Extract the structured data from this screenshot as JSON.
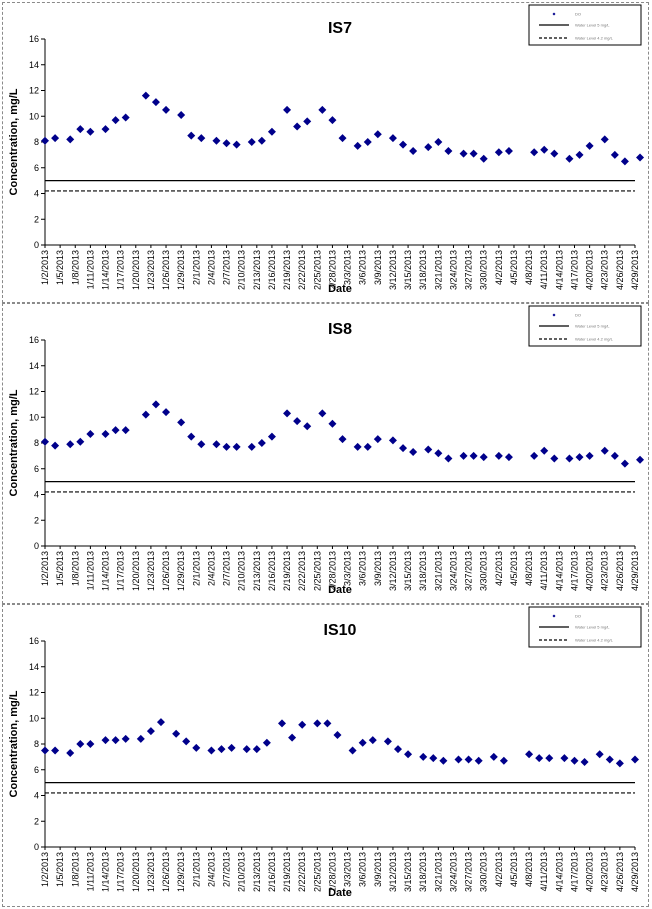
{
  "chart_data": [
    {
      "type": "scatter",
      "title": "IS7",
      "xlabel": "Date",
      "ylabel": "Concentration, mg/L",
      "ylim": [
        0,
        16
      ],
      "yticks": [
        0,
        2,
        4,
        6,
        8,
        10,
        12,
        14,
        16
      ],
      "x_tick_labels": [
        "1/2/2013",
        "1/5/2013",
        "1/8/2013",
        "1/11/2013",
        "1/14/2013",
        "1/17/2013",
        "1/20/2013",
        "1/23/2013",
        "1/26/2013",
        "1/29/2013",
        "2/1/2013",
        "2/4/2013",
        "2/7/2013",
        "2/10/2013",
        "2/13/2013",
        "2/16/2013",
        "2/19/2013",
        "2/22/2013",
        "2/25/2013",
        "2/28/2013",
        "3/3/2013",
        "3/6/2013",
        "3/9/2013",
        "3/12/2013",
        "3/15/2013",
        "3/18/2013",
        "3/21/2013",
        "3/24/2013",
        "3/27/2013",
        "3/30/2013",
        "4/2/2013",
        "4/5/2013",
        "4/8/2013",
        "4/11/2013",
        "4/14/2013",
        "4/17/2013",
        "4/20/2013",
        "4/23/2013",
        "4/26/2013",
        "4/29/2013"
      ],
      "x_range": [
        "2013-01-02",
        "2013-04-29"
      ],
      "grid": false,
      "legend": {
        "position": "top-right",
        "entries": [
          "DO",
          "Water Level 5 mg/L",
          "Water Level 4.2 mg/L"
        ]
      },
      "lines": [
        {
          "y": 5,
          "style": "solid"
        },
        {
          "y": 4.2,
          "style": "dashed"
        }
      ],
      "series": [
        {
          "marker": "diamond",
          "color": "#00008B",
          "x": [
            "2013-01-02",
            "2013-01-04",
            "2013-01-07",
            "2013-01-09",
            "2013-01-11",
            "2013-01-14",
            "2013-01-16",
            "2013-01-18",
            "2013-01-22",
            "2013-01-24",
            "2013-01-26",
            "2013-01-29",
            "2013-01-31",
            "2013-02-02",
            "2013-02-05",
            "2013-02-07",
            "2013-02-09",
            "2013-02-12",
            "2013-02-14",
            "2013-02-16",
            "2013-02-19",
            "2013-02-21",
            "2013-02-23",
            "2013-02-26",
            "2013-02-28",
            "2013-03-02",
            "2013-03-05",
            "2013-03-07",
            "2013-03-09",
            "2013-03-12",
            "2013-03-14",
            "2013-03-16",
            "2013-03-19",
            "2013-03-21",
            "2013-03-23",
            "2013-03-26",
            "2013-03-28",
            "2013-03-30",
            "2013-04-02",
            "2013-04-04",
            "2013-04-09",
            "2013-04-11",
            "2013-04-13",
            "2013-04-16",
            "2013-04-18",
            "2013-04-20",
            "2013-04-23",
            "2013-04-25",
            "2013-04-27",
            "2013-04-30"
          ],
          "y": [
            8.1,
            8.3,
            8.2,
            9.0,
            8.8,
            9.0,
            9.7,
            9.9,
            11.6,
            11.1,
            10.5,
            10.1,
            8.5,
            8.3,
            8.1,
            7.9,
            7.8,
            8.0,
            8.1,
            8.8,
            10.5,
            9.2,
            9.6,
            10.5,
            9.7,
            8.3,
            7.7,
            8.0,
            8.6,
            8.3,
            7.8,
            7.3,
            7.6,
            8.0,
            7.3,
            7.1,
            7.1,
            6.7,
            7.2,
            7.3,
            7.2,
            7.4,
            7.1,
            6.7,
            7.0,
            7.7,
            8.2,
            7.0,
            6.5,
            6.8
          ]
        }
      ]
    },
    {
      "type": "scatter",
      "title": "IS8",
      "xlabel": "Date",
      "ylabel": "Concentration, mg/L",
      "ylim": [
        0,
        16
      ],
      "yticks": [
        0,
        2,
        4,
        6,
        8,
        10,
        12,
        14,
        16
      ],
      "x_tick_labels": [
        "1/2/2013",
        "1/5/2013",
        "1/8/2013",
        "1/11/2013",
        "1/14/2013",
        "1/17/2013",
        "1/20/2013",
        "1/23/2013",
        "1/26/2013",
        "1/29/2013",
        "2/1/2013",
        "2/4/2013",
        "2/7/2013",
        "2/10/2013",
        "2/13/2013",
        "2/16/2013",
        "2/19/2013",
        "2/22/2013",
        "2/25/2013",
        "2/28/2013",
        "3/3/2013",
        "3/6/2013",
        "3/9/2013",
        "3/12/2013",
        "3/15/2013",
        "3/18/2013",
        "3/21/2013",
        "3/24/2013",
        "3/27/2013",
        "3/30/2013",
        "4/2/2013",
        "4/5/2013",
        "4/8/2013",
        "4/11/2013",
        "4/14/2013",
        "4/17/2013",
        "4/20/2013",
        "4/23/2013",
        "4/26/2013",
        "4/29/2013"
      ],
      "x_range": [
        "2013-01-02",
        "2013-04-29"
      ],
      "grid": false,
      "legend": {
        "position": "top-right",
        "entries": [
          "DO",
          "Water Level 5 mg/L",
          "Water Level 4.2 mg/L"
        ]
      },
      "lines": [
        {
          "y": 5,
          "style": "solid"
        },
        {
          "y": 4.2,
          "style": "dashed"
        }
      ],
      "series": [
        {
          "marker": "diamond",
          "color": "#00008B",
          "x": [
            "2013-01-02",
            "2013-01-04",
            "2013-01-07",
            "2013-01-09",
            "2013-01-11",
            "2013-01-14",
            "2013-01-16",
            "2013-01-18",
            "2013-01-22",
            "2013-01-24",
            "2013-01-26",
            "2013-01-29",
            "2013-01-31",
            "2013-02-02",
            "2013-02-05",
            "2013-02-07",
            "2013-02-09",
            "2013-02-12",
            "2013-02-14",
            "2013-02-16",
            "2013-02-19",
            "2013-02-21",
            "2013-02-23",
            "2013-02-26",
            "2013-02-28",
            "2013-03-02",
            "2013-03-05",
            "2013-03-07",
            "2013-03-09",
            "2013-03-12",
            "2013-03-14",
            "2013-03-16",
            "2013-03-19",
            "2013-03-21",
            "2013-03-23",
            "2013-03-26",
            "2013-03-28",
            "2013-03-30",
            "2013-04-02",
            "2013-04-04",
            "2013-04-09",
            "2013-04-11",
            "2013-04-13",
            "2013-04-16",
            "2013-04-18",
            "2013-04-20",
            "2013-04-23",
            "2013-04-25",
            "2013-04-27",
            "2013-04-30"
          ],
          "y": [
            8.1,
            7.8,
            7.9,
            8.1,
            8.7,
            8.7,
            9.0,
            9.0,
            10.2,
            11.0,
            10.4,
            9.6,
            8.5,
            7.9,
            7.9,
            7.7,
            7.7,
            7.7,
            8.0,
            8.5,
            10.3,
            9.7,
            9.3,
            10.3,
            9.5,
            8.3,
            7.7,
            7.7,
            8.3,
            8.2,
            7.6,
            7.3,
            7.5,
            7.2,
            6.8,
            7.0,
            7.0,
            6.9,
            7.0,
            6.9,
            7.0,
            7.4,
            6.8,
            6.8,
            6.9,
            7.0,
            7.4,
            7.0,
            6.4,
            6.7
          ]
        }
      ]
    },
    {
      "type": "scatter",
      "title": "IS10",
      "xlabel": "Date",
      "ylabel": "Concentration, mg/L",
      "ylim": [
        0,
        16
      ],
      "yticks": [
        0,
        2,
        4,
        6,
        8,
        10,
        12,
        14,
        16
      ],
      "x_tick_labels": [
        "1/2/2013",
        "1/5/2013",
        "1/8/2013",
        "1/11/2013",
        "1/14/2013",
        "1/17/2013",
        "1/20/2013",
        "1/23/2013",
        "1/26/2013",
        "1/29/2013",
        "2/1/2013",
        "2/4/2013",
        "2/7/2013",
        "2/10/2013",
        "2/13/2013",
        "2/16/2013",
        "2/19/2013",
        "2/22/2013",
        "2/25/2013",
        "2/28/2013",
        "3/3/2013",
        "3/6/2013",
        "3/9/2013",
        "3/12/2013",
        "3/15/2013",
        "3/18/2013",
        "3/21/2013",
        "3/24/2013",
        "3/27/2013",
        "3/30/2013",
        "4/2/2013",
        "4/5/2013",
        "4/8/2013",
        "4/11/2013",
        "4/14/2013",
        "4/17/2013",
        "4/20/2013",
        "4/23/2013",
        "4/26/2013",
        "4/29/2013"
      ],
      "x_range": [
        "2013-01-02",
        "2013-04-29"
      ],
      "grid": false,
      "legend": {
        "position": "top-right",
        "entries": [
          "DO",
          "Water Level 5 mg/L",
          "Water Level 4.2 mg/L"
        ]
      },
      "lines": [
        {
          "y": 5,
          "style": "solid"
        },
        {
          "y": 4.2,
          "style": "dashed"
        }
      ],
      "series": [
        {
          "marker": "diamond",
          "color": "#00008B",
          "x": [
            "2013-01-02",
            "2013-01-04",
            "2013-01-07",
            "2013-01-09",
            "2013-01-11",
            "2013-01-14",
            "2013-01-16",
            "2013-01-18",
            "2013-01-21",
            "2013-01-23",
            "2013-01-25",
            "2013-01-28",
            "2013-01-30",
            "2013-02-01",
            "2013-02-04",
            "2013-02-06",
            "2013-02-08",
            "2013-02-11",
            "2013-02-13",
            "2013-02-15",
            "2013-02-18",
            "2013-02-20",
            "2013-02-22",
            "2013-02-25",
            "2013-02-27",
            "2013-03-01",
            "2013-03-04",
            "2013-03-06",
            "2013-03-08",
            "2013-03-11",
            "2013-03-13",
            "2013-03-15",
            "2013-03-18",
            "2013-03-20",
            "2013-03-22",
            "2013-03-25",
            "2013-03-27",
            "2013-03-29",
            "2013-04-01",
            "2013-04-03",
            "2013-04-08",
            "2013-04-10",
            "2013-04-12",
            "2013-04-15",
            "2013-04-17",
            "2013-04-19",
            "2013-04-22",
            "2013-04-24",
            "2013-04-26",
            "2013-04-29"
          ],
          "y": [
            7.5,
            7.5,
            7.3,
            8.0,
            8.0,
            8.3,
            8.3,
            8.4,
            8.4,
            9.0,
            9.7,
            8.8,
            8.2,
            7.7,
            7.5,
            7.6,
            7.7,
            7.6,
            7.6,
            8.1,
            9.6,
            8.5,
            9.5,
            9.6,
            9.6,
            8.7,
            7.5,
            8.1,
            8.3,
            8.2,
            7.6,
            7.2,
            7.0,
            6.9,
            6.7,
            6.8,
            6.8,
            6.7,
            7.0,
            6.7,
            7.2,
            6.9,
            6.9,
            6.9,
            6.7,
            6.6,
            7.2,
            6.8,
            6.5,
            6.8
          ]
        }
      ]
    }
  ]
}
